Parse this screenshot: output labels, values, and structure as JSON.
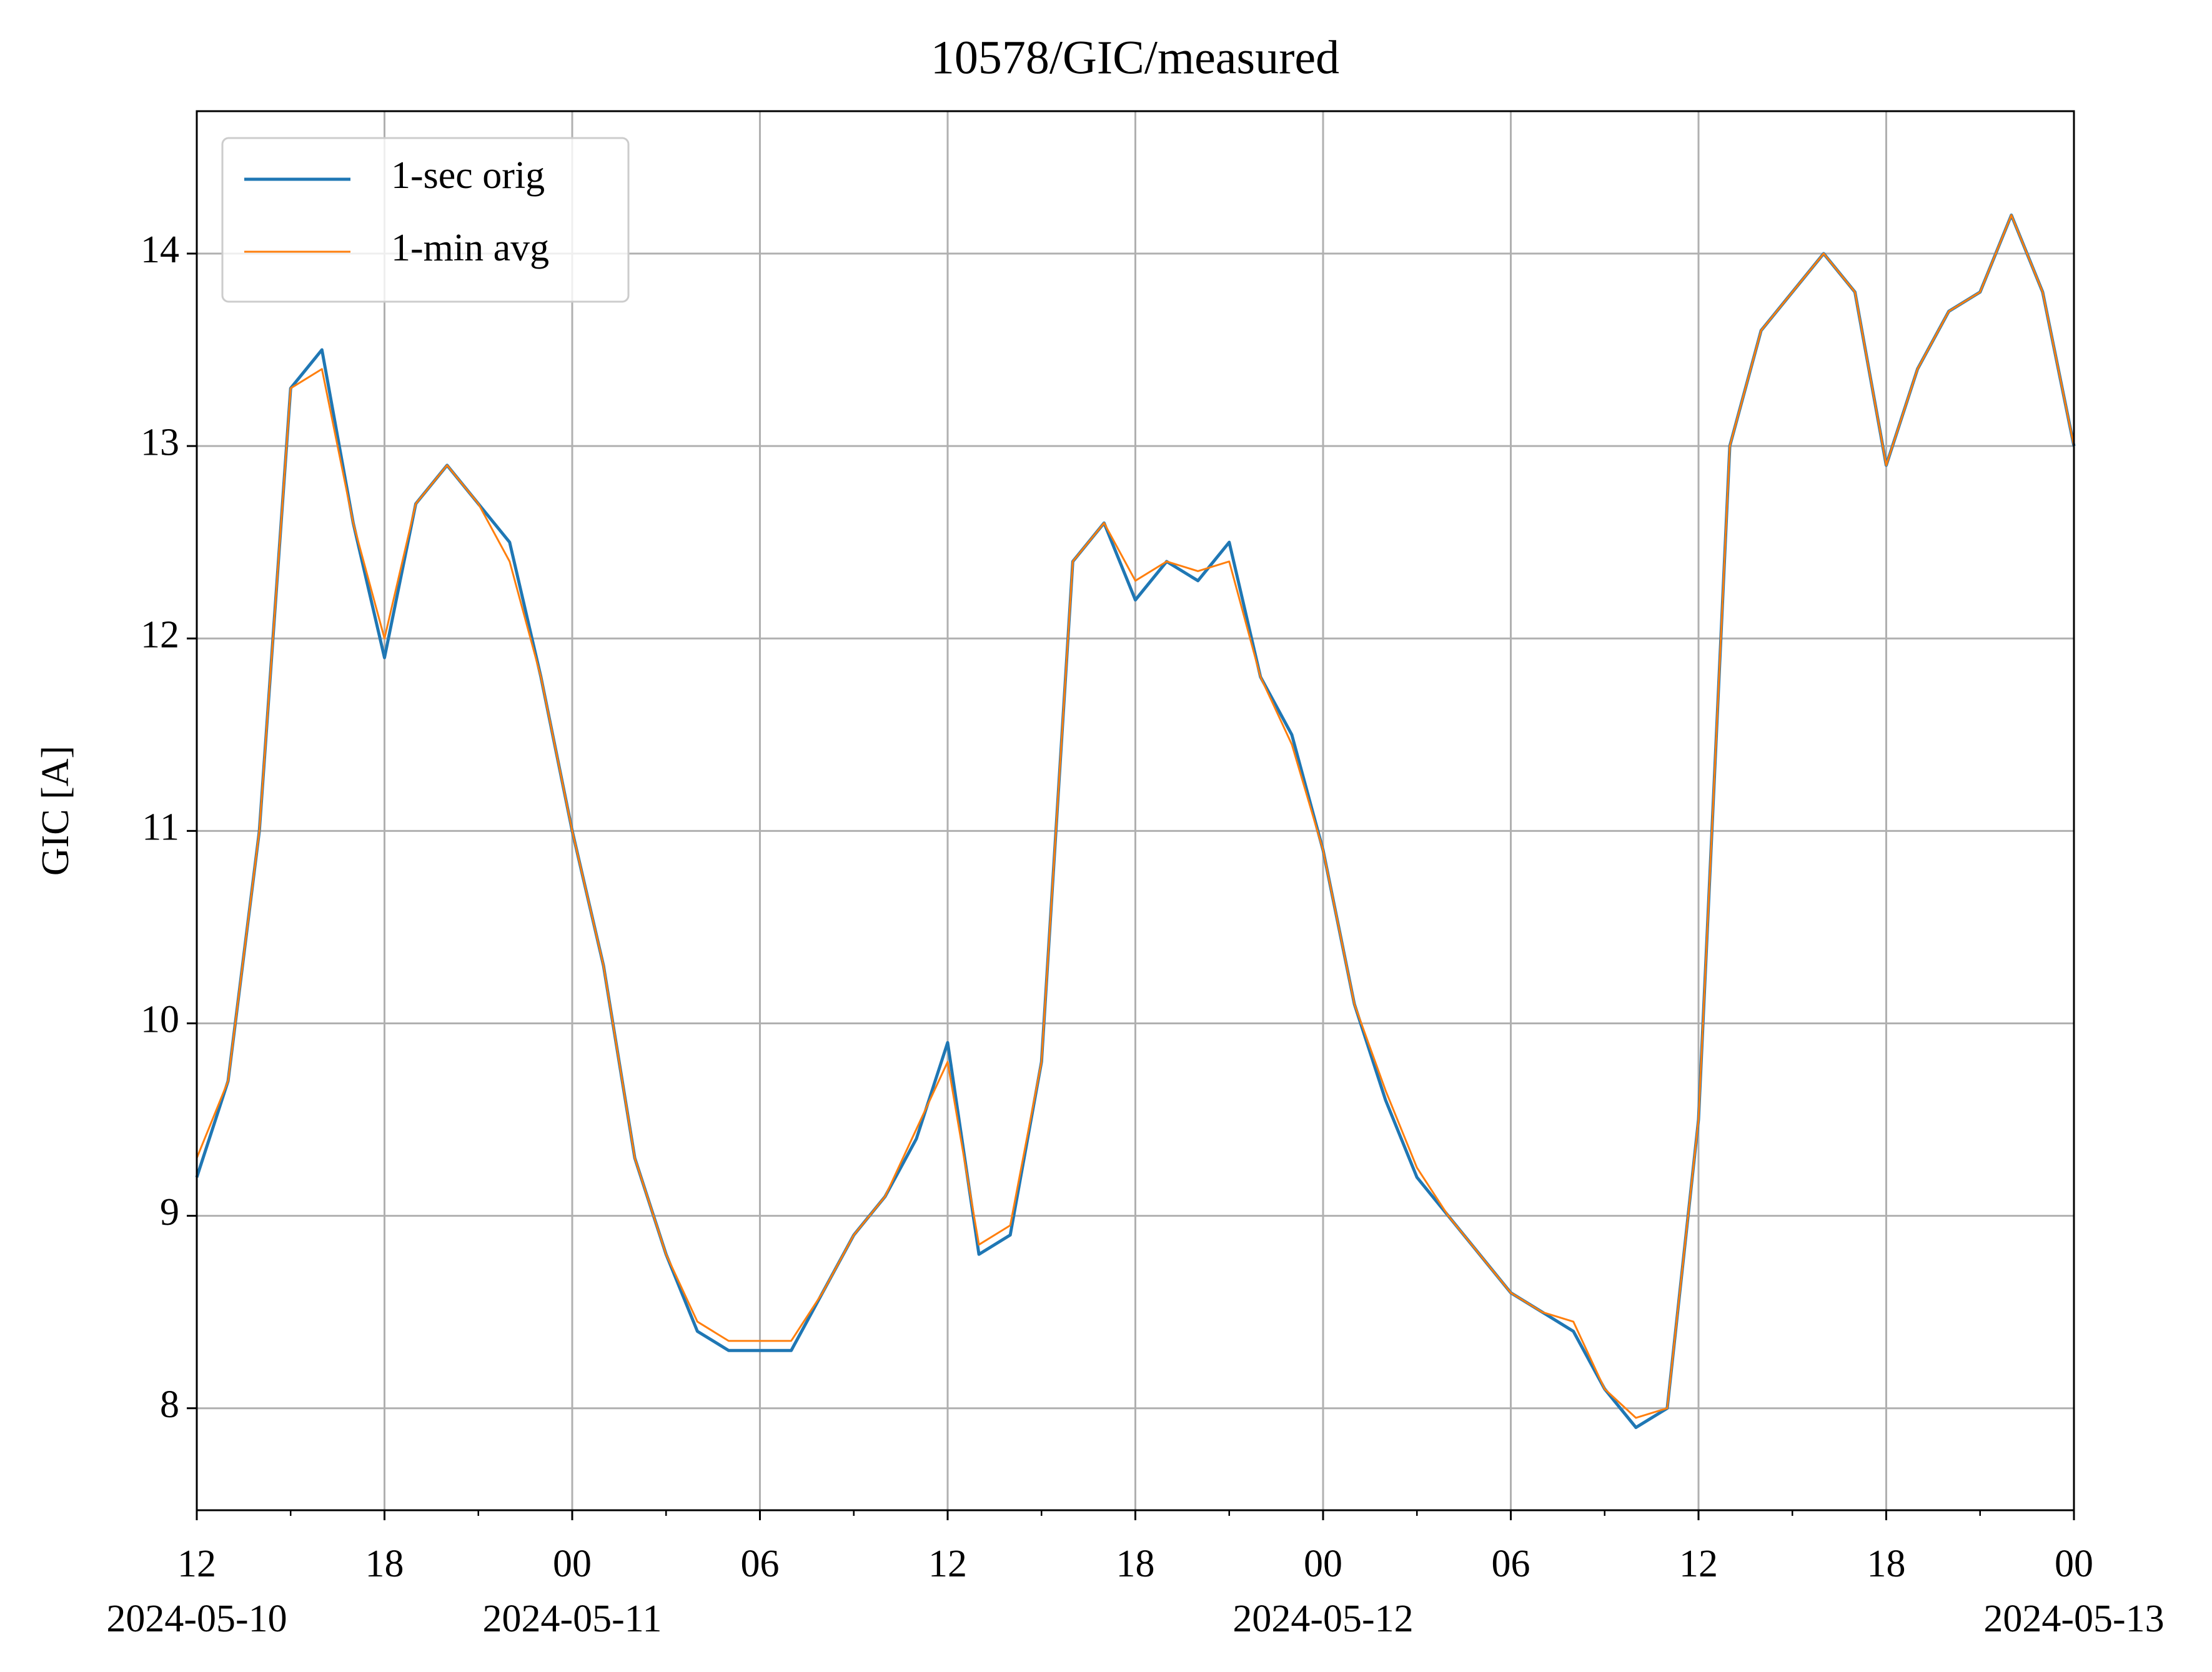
{
  "chart_data": {
    "type": "line",
    "title": "10578/GIC/measured",
    "y_label": "GIC [A]",
    "x": [
      "2024-05-10 12:00",
      "2024-05-10 13:00",
      "2024-05-10 14:00",
      "2024-05-10 15:00",
      "2024-05-10 16:00",
      "2024-05-10 17:00",
      "2024-05-10 18:00",
      "2024-05-10 19:00",
      "2024-05-10 20:00",
      "2024-05-10 21:00",
      "2024-05-10 22:00",
      "2024-05-10 23:00",
      "2024-05-11 00:00",
      "2024-05-11 01:00",
      "2024-05-11 02:00",
      "2024-05-11 03:00",
      "2024-05-11 04:00",
      "2024-05-11 05:00",
      "2024-05-11 06:00",
      "2024-05-11 07:00",
      "2024-05-11 08:00",
      "2024-05-11 09:00",
      "2024-05-11 10:00",
      "2024-05-11 11:00",
      "2024-05-11 12:00",
      "2024-05-11 13:00",
      "2024-05-11 14:00",
      "2024-05-11 15:00",
      "2024-05-11 16:00",
      "2024-05-11 17:00",
      "2024-05-11 18:00",
      "2024-05-11 19:00",
      "2024-05-11 20:00",
      "2024-05-11 21:00",
      "2024-05-11 22:00",
      "2024-05-11 23:00",
      "2024-05-12 00:00",
      "2024-05-12 01:00",
      "2024-05-12 02:00",
      "2024-05-12 03:00",
      "2024-05-12 04:00",
      "2024-05-12 05:00",
      "2024-05-12 06:00",
      "2024-05-12 07:00",
      "2024-05-12 08:00",
      "2024-05-12 09:00",
      "2024-05-12 10:00",
      "2024-05-12 11:00",
      "2024-05-12 12:00",
      "2024-05-12 13:00",
      "2024-05-12 14:00",
      "2024-05-12 15:00",
      "2024-05-12 16:00",
      "2024-05-12 17:00",
      "2024-05-12 18:00",
      "2024-05-12 19:00",
      "2024-05-12 20:00",
      "2024-05-12 21:00",
      "2024-05-12 22:00",
      "2024-05-12 23:00",
      "2024-05-13 00:00"
    ],
    "series": [
      {
        "name": "1-sec orig",
        "color": "#1f77b4",
        "values": [
          9.2,
          9.7,
          11.0,
          13.3,
          13.5,
          12.6,
          11.9,
          12.7,
          12.9,
          12.7,
          12.5,
          11.8,
          11.0,
          10.3,
          9.3,
          8.8,
          8.4,
          8.3,
          8.3,
          8.3,
          8.6,
          8.9,
          9.1,
          9.4,
          9.9,
          8.8,
          8.9,
          9.8,
          12.4,
          12.6,
          12.2,
          12.4,
          12.3,
          12.5,
          11.8,
          11.5,
          10.9,
          10.1,
          9.6,
          9.2,
          9.0,
          8.8,
          8.6,
          8.5,
          8.4,
          8.1,
          7.9,
          8.0,
          9.5,
          13.0,
          13.6,
          13.8,
          14.0,
          13.8,
          12.9,
          13.4,
          13.7,
          13.8,
          14.2,
          13.8,
          13.0
        ]
      },
      {
        "name": "1-min avg",
        "color": "#ff7f0e",
        "values": [
          9.3,
          9.7,
          11.0,
          13.3,
          13.4,
          12.6,
          12.0,
          12.7,
          12.9,
          12.7,
          12.4,
          11.8,
          11.0,
          10.3,
          9.3,
          8.8,
          8.45,
          8.35,
          8.35,
          8.35,
          8.6,
          8.9,
          9.1,
          9.45,
          9.8,
          8.85,
          8.95,
          9.8,
          12.4,
          12.6,
          12.3,
          12.4,
          12.35,
          12.4,
          11.8,
          11.45,
          10.9,
          10.1,
          9.65,
          9.25,
          9.0,
          8.8,
          8.6,
          8.5,
          8.45,
          8.1,
          7.95,
          8.0,
          9.5,
          13.0,
          13.6,
          13.8,
          14.0,
          13.8,
          12.9,
          13.4,
          13.7,
          13.8,
          14.2,
          13.8,
          13.0
        ]
      }
    ],
    "xlim": [
      "2024-05-10 12:00",
      "2024-05-13 00:00"
    ],
    "xticks": [
      {
        "value": "2024-05-10 12:00",
        "label": "12"
      },
      {
        "value": "2024-05-10 18:00",
        "label": "18"
      },
      {
        "value": "2024-05-11 00:00",
        "label": "00"
      },
      {
        "value": "2024-05-11 06:00",
        "label": "06"
      },
      {
        "value": "2024-05-11 12:00",
        "label": "12"
      },
      {
        "value": "2024-05-11 18:00",
        "label": "18"
      },
      {
        "value": "2024-05-12 00:00",
        "label": "00"
      },
      {
        "value": "2024-05-12 06:00",
        "label": "06"
      },
      {
        "value": "2024-05-12 12:00",
        "label": "12"
      },
      {
        "value": "2024-05-12 18:00",
        "label": "18"
      },
      {
        "value": "2024-05-13 00:00",
        "label": "00"
      }
    ],
    "xdate_labels": [
      {
        "value": "2024-05-10 12:00",
        "label": "2024-05-10"
      },
      {
        "value": "2024-05-11 00:00",
        "label": "2024-05-11"
      },
      {
        "value": "2024-05-12 00:00",
        "label": "2024-05-12"
      },
      {
        "value": "2024-05-13 00:00",
        "label": "2024-05-13"
      }
    ],
    "xminorticks": [
      "2024-05-10 15:00",
      "2024-05-10 21:00",
      "2024-05-11 03:00",
      "2024-05-11 09:00",
      "2024-05-11 15:00",
      "2024-05-11 21:00",
      "2024-05-12 03:00",
      "2024-05-12 09:00",
      "2024-05-12 15:00",
      "2024-05-12 21:00"
    ],
    "ylim": [
      7.47,
      14.74
    ],
    "yticks": [
      8,
      9,
      10,
      11,
      12,
      13,
      14
    ],
    "grid": true,
    "legend": "upper left"
  }
}
